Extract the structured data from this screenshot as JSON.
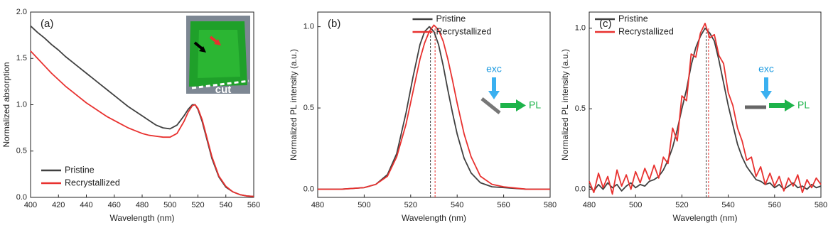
{
  "chart_data": [
    {
      "type": "line",
      "panel_label": "(a)",
      "xlabel": "Wavelength (nm)",
      "ylabel": "Normalized absorption",
      "inset_text": "cut",
      "x": [
        400,
        405,
        410,
        415,
        420,
        425,
        430,
        435,
        440,
        445,
        450,
        455,
        460,
        465,
        470,
        475,
        480,
        485,
        490,
        495,
        500,
        505,
        510,
        513,
        516,
        518,
        520,
        523,
        526,
        530,
        535,
        540,
        545,
        550,
        555,
        560
      ],
      "series": [
        {
          "name": "Pristine",
          "color": "#404040",
          "values": [
            1.85,
            1.78,
            1.72,
            1.65,
            1.59,
            1.52,
            1.46,
            1.4,
            1.34,
            1.28,
            1.22,
            1.16,
            1.1,
            1.04,
            0.98,
            0.93,
            0.88,
            0.83,
            0.78,
            0.75,
            0.74,
            0.78,
            0.88,
            0.95,
            1.0,
            1.0,
            0.95,
            0.82,
            0.65,
            0.42,
            0.22,
            0.11,
            0.06,
            0.03,
            0.015,
            0.01
          ]
        },
        {
          "name": "Recrystallized",
          "color": "#e8312f",
          "values": [
            1.58,
            1.5,
            1.42,
            1.34,
            1.27,
            1.2,
            1.14,
            1.08,
            1.02,
            0.97,
            0.92,
            0.87,
            0.83,
            0.79,
            0.75,
            0.72,
            0.69,
            0.67,
            0.66,
            0.65,
            0.65,
            0.69,
            0.82,
            0.92,
            0.99,
            1.0,
            0.96,
            0.84,
            0.67,
            0.44,
            0.23,
            0.12,
            0.06,
            0.03,
            0.015,
            0.01
          ]
        }
      ],
      "xlim": [
        400,
        560
      ],
      "xticks": [
        400,
        420,
        440,
        460,
        480,
        500,
        520,
        540,
        560
      ],
      "ylim": [
        0,
        2
      ],
      "yticks": [
        {
          "value": 0,
          "label": "0.0"
        },
        {
          "value": 0.5,
          "label": "0.5"
        },
        {
          "value": 1,
          "label": "1.0"
        },
        {
          "value": 1.5,
          "label": "1.5"
        },
        {
          "value": 2,
          "label": "2.0"
        }
      ],
      "legend": "lower left"
    },
    {
      "type": "line",
      "panel_label": "(b)",
      "xlabel": "Wavelength (nm)",
      "ylabel": "Normalized PL intensity (a.u.)",
      "schematic_exc": "exc",
      "schematic_pl": "PL",
      "schematic_tilt": true,
      "x": [
        480,
        490,
        500,
        505,
        510,
        514,
        518,
        521,
        524,
        526,
        528,
        530,
        532,
        534,
        536,
        538,
        540,
        543,
        546,
        550,
        555,
        560,
        570,
        580
      ],
      "series": [
        {
          "name": "Pristine",
          "color": "#404040",
          "values": [
            0.0,
            0.0,
            0.01,
            0.03,
            0.09,
            0.22,
            0.47,
            0.69,
            0.89,
            0.97,
            1.0,
            0.97,
            0.89,
            0.76,
            0.61,
            0.47,
            0.34,
            0.19,
            0.1,
            0.04,
            0.015,
            0.01,
            0.0,
            0.0
          ]
        },
        {
          "name": "Recrystallized",
          "color": "#e8312f",
          "values": [
            0.0,
            0.0,
            0.01,
            0.03,
            0.08,
            0.2,
            0.4,
            0.6,
            0.8,
            0.9,
            0.97,
            1.01,
            0.98,
            0.91,
            0.8,
            0.67,
            0.53,
            0.34,
            0.2,
            0.08,
            0.03,
            0.015,
            0.0,
            0.0
          ]
        }
      ],
      "vlines": [
        {
          "x": 528.5,
          "color": "#404040"
        },
        {
          "x": 530.5,
          "color": "#e8312f"
        }
      ],
      "xlim": [
        480,
        580
      ],
      "xticks": [
        480,
        500,
        520,
        540,
        560,
        580
      ],
      "ylim": [
        -0.05,
        1.09
      ],
      "yticks": [
        {
          "value": 0,
          "label": "0.0"
        },
        {
          "value": 0.5,
          "label": "0.5"
        },
        {
          "value": 1,
          "label": "1.0"
        }
      ],
      "legend": "upper center"
    },
    {
      "type": "line",
      "panel_label": "(c)",
      "xlabel": "Wavelength (nm)",
      "ylabel": "Normalized PL intensity (a.u.)",
      "schematic_exc": "exc",
      "schematic_pl": "PL",
      "schematic_tilt": false,
      "x": [
        480,
        482,
        484,
        486,
        488,
        490,
        492,
        494,
        496,
        498,
        500,
        502,
        504,
        506,
        508,
        510,
        512,
        514,
        516,
        518,
        520,
        522,
        524,
        526,
        528,
        530,
        532,
        534,
        536,
        538,
        540,
        542,
        544,
        546,
        548,
        550,
        552,
        554,
        556,
        558,
        560,
        562,
        564,
        566,
        568,
        570,
        572,
        574,
        576,
        578,
        580
      ],
      "series": [
        {
          "name": "Pristine",
          "color": "#404040",
          "values": [
            0.02,
            -0.01,
            0.03,
            0.0,
            0.04,
            0.01,
            0.03,
            -0.01,
            0.02,
            0.04,
            0.01,
            0.03,
            0.02,
            0.05,
            0.06,
            0.08,
            0.12,
            0.18,
            0.26,
            0.37,
            0.5,
            0.62,
            0.77,
            0.88,
            0.95,
            1.0,
            0.97,
            0.92,
            0.8,
            0.66,
            0.52,
            0.4,
            0.28,
            0.2,
            0.14,
            0.1,
            0.06,
            0.05,
            0.03,
            0.04,
            0.01,
            0.03,
            0.0,
            0.02,
            0.04,
            0.01,
            0.02,
            0.0,
            0.03,
            0.01,
            0.02
          ]
        },
        {
          "name": "Recrystallized",
          "color": "#e8312f",
          "values": [
            0.05,
            -0.02,
            0.1,
            0.01,
            0.08,
            -0.03,
            0.12,
            0.02,
            0.09,
            0.0,
            0.11,
            0.04,
            0.13,
            0.06,
            0.15,
            0.07,
            0.2,
            0.16,
            0.38,
            0.3,
            0.58,
            0.55,
            0.84,
            0.82,
            0.97,
            1.03,
            0.94,
            0.96,
            0.83,
            0.78,
            0.6,
            0.52,
            0.38,
            0.3,
            0.18,
            0.2,
            0.08,
            0.14,
            0.03,
            0.1,
            0.02,
            0.08,
            -0.01,
            0.07,
            0.02,
            0.09,
            -0.02,
            0.06,
            0.01,
            0.07,
            0.03
          ]
        }
      ],
      "vlines": [
        {
          "x": 530.5,
          "color": "#404040"
        },
        {
          "x": 531.5,
          "color": "#e8312f"
        }
      ],
      "xlim": [
        480,
        580
      ],
      "xticks": [
        480,
        500,
        520,
        540,
        560,
        580
      ],
      "ylim": [
        -0.05,
        1.1
      ],
      "yticks": [
        {
          "value": 0,
          "label": "0.0"
        },
        {
          "value": 0.5,
          "label": "0.5"
        },
        {
          "value": 1,
          "label": "1.0"
        }
      ],
      "legend": "upper left"
    }
  ]
}
